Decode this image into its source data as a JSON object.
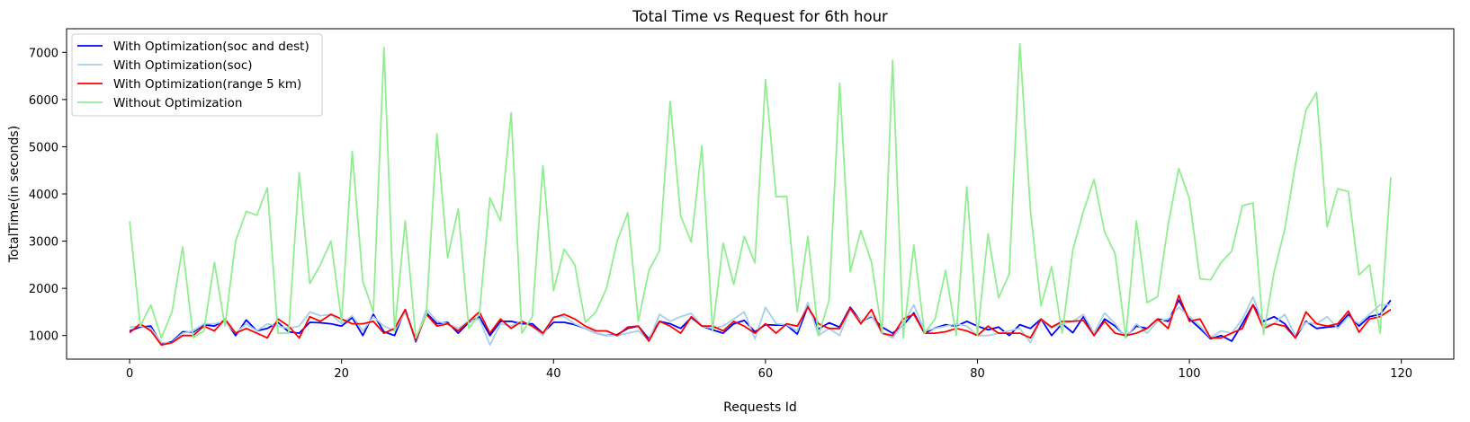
{
  "chart_data": {
    "type": "line",
    "title": "Total Time vs Request for 6th hour",
    "xlabel": "Requests Id",
    "ylabel": "TotalTime(in seconds)",
    "xlim": [
      -5.95,
      124.95
    ],
    "ylim": [
      500,
      7500
    ],
    "xticks": [
      0,
      20,
      40,
      60,
      80,
      100,
      120
    ],
    "yticks": [
      1000,
      2000,
      3000,
      4000,
      5000,
      6000,
      7000
    ],
    "grid": false,
    "legend_position": "top-left",
    "series": [
      {
        "name": "With Optimization(soc and dest)",
        "color": "#0000ff",
        "x": [
          0,
          1,
          2,
          3,
          4,
          5,
          6,
          7,
          8,
          9,
          10,
          11,
          12,
          13,
          14,
          15,
          16,
          17,
          18,
          19,
          20,
          21,
          22,
          23,
          24,
          25,
          26,
          27,
          28,
          29,
          30,
          31,
          32,
          33,
          34,
          35,
          36,
          37,
          38,
          39,
          40,
          41,
          42,
          43,
          44,
          45,
          46,
          47,
          48,
          49,
          50,
          51,
          52,
          53,
          54,
          55,
          56,
          57,
          58,
          59,
          60,
          61,
          62,
          63,
          64,
          65,
          66,
          67,
          68,
          69,
          70,
          71,
          72,
          73,
          74,
          75,
          76,
          77,
          78,
          79,
          80,
          81,
          82,
          83,
          84,
          85,
          86,
          87,
          88,
          89,
          90,
          91,
          92,
          93,
          94,
          95,
          96,
          97,
          98,
          99,
          100,
          101,
          102,
          103,
          104,
          105,
          106,
          107,
          108,
          109,
          110,
          111,
          112,
          113,
          114,
          115,
          116,
          117,
          118,
          119
        ],
        "values": [
          1100,
          1180,
          1200,
          820,
          870,
          1080,
          1070,
          1230,
          1200,
          1330,
          1000,
          1330,
          1100,
          1150,
          1280,
          1080,
          1050,
          1280,
          1270,
          1250,
          1200,
          1380,
          1000,
          1450,
          1080,
          1000,
          1550,
          870,
          1480,
          1250,
          1280,
          1050,
          1280,
          1400,
          1000,
          1300,
          1300,
          1250,
          1250,
          1050,
          1280,
          1280,
          1230,
          1150,
          1050,
          1000,
          1020,
          1150,
          1200,
          930,
          1300,
          1250,
          1150,
          1380,
          1200,
          1120,
          1050,
          1250,
          1320,
          1080,
          1230,
          1220,
          1220,
          1030,
          1620,
          1140,
          1270,
          1180,
          1600,
          1300,
          1400,
          1180,
          1050,
          1220,
          1480,
          1050,
          1160,
          1230,
          1200,
          1300,
          1200,
          1120,
          1180,
          1000,
          1230,
          1150,
          1350,
          1000,
          1250,
          1060,
          1400,
          1000,
          1350,
          1200,
          980,
          1200,
          1150,
          1350,
          1300,
          1750,
          1350,
          1150,
          930,
          1000,
          880,
          1250,
          1650,
          1300,
          1400,
          1250,
          950,
          1300,
          1150,
          1180,
          1200,
          1450,
          1200,
          1400,
          1450,
          1750
        ]
      },
      {
        "name": "With Optimization(soc)",
        "color": "#a6cfe8",
        "x": [
          0,
          1,
          2,
          3,
          4,
          5,
          6,
          7,
          8,
          9,
          10,
          11,
          12,
          13,
          14,
          15,
          16,
          17,
          18,
          19,
          20,
          21,
          22,
          23,
          24,
          25,
          26,
          27,
          28,
          29,
          30,
          31,
          32,
          33,
          34,
          35,
          36,
          37,
          38,
          39,
          40,
          41,
          42,
          43,
          44,
          45,
          46,
          47,
          48,
          49,
          50,
          51,
          52,
          53,
          54,
          55,
          56,
          57,
          58,
          59,
          60,
          61,
          62,
          63,
          64,
          65,
          66,
          67,
          68,
          69,
          70,
          71,
          72,
          73,
          74,
          75,
          76,
          77,
          78,
          79,
          80,
          81,
          82,
          83,
          84,
          85,
          86,
          87,
          88,
          89,
          90,
          91,
          92,
          93,
          94,
          95,
          96,
          97,
          98,
          99,
          100,
          101,
          102,
          103,
          104,
          105,
          106,
          107,
          108,
          109,
          110,
          111,
          112,
          113,
          114,
          115,
          116,
          117,
          118,
          119
        ],
        "values": [
          1180,
          1200,
          1150,
          850,
          850,
          1050,
          1100,
          1250,
          1250,
          1300,
          1050,
          1250,
          1100,
          1250,
          1200,
          1150,
          1200,
          1500,
          1420,
          1450,
          1250,
          1420,
          1100,
          1400,
          1200,
          1100,
          1500,
          900,
          1560,
          1300,
          1250,
          1150,
          1300,
          1350,
          800,
          1250,
          1200,
          1300,
          1200,
          1000,
          1400,
          1400,
          1250,
          1150,
          1050,
          1000,
          1000,
          1050,
          1100,
          900,
          1450,
          1300,
          1400,
          1470,
          1200,
          1150,
          1200,
          1350,
          1500,
          930,
          1600,
          1250,
          1230,
          1100,
          1700,
          1000,
          1150,
          1000,
          1550,
          1300,
          1420,
          1050,
          950,
          1250,
          1650,
          1100,
          1150,
          1200,
          1250,
          1200,
          1000,
          1000,
          1050,
          1100,
          1150,
          850,
          1350,
          1150,
          1250,
          1300,
          1450,
          1050,
          1480,
          1250,
          950,
          1250,
          1050,
          1300,
          1350,
          1600,
          1400,
          1200,
          950,
          1100,
          1050,
          1350,
          1820,
          1220,
          1250,
          1450,
          1000,
          1280,
          1250,
          1400,
          1150,
          1400,
          1250,
          1450,
          1650,
          1650
        ]
      },
      {
        "name": "With Optimization(range 5 km)",
        "color": "#ff0000",
        "x": [
          0,
          1,
          2,
          3,
          4,
          5,
          6,
          7,
          8,
          9,
          10,
          11,
          12,
          13,
          14,
          15,
          16,
          17,
          18,
          19,
          20,
          21,
          22,
          23,
          24,
          25,
          26,
          27,
          28,
          29,
          30,
          31,
          32,
          33,
          34,
          35,
          36,
          37,
          38,
          39,
          40,
          41,
          42,
          43,
          44,
          45,
          46,
          47,
          48,
          49,
          50,
          51,
          52,
          53,
          54,
          55,
          56,
          57,
          58,
          59,
          60,
          61,
          62,
          63,
          64,
          65,
          66,
          67,
          68,
          69,
          70,
          71,
          72,
          73,
          74,
          75,
          76,
          77,
          78,
          79,
          80,
          81,
          82,
          83,
          84,
          85,
          86,
          87,
          88,
          89,
          90,
          91,
          92,
          93,
          94,
          95,
          96,
          97,
          98,
          99,
          100,
          101,
          102,
          103,
          104,
          105,
          106,
          107,
          108,
          109,
          110,
          111,
          112,
          113,
          114,
          115,
          116,
          117,
          118,
          119
        ],
        "values": [
          1060,
          1250,
          1100,
          800,
          850,
          1000,
          1000,
          1200,
          1100,
          1350,
          1050,
          1150,
          1050,
          950,
          1350,
          1200,
          950,
          1400,
          1300,
          1450,
          1350,
          1250,
          1250,
          1300,
          1050,
          1150,
          1550,
          900,
          1450,
          1200,
          1250,
          1100,
          1300,
          1500,
          1050,
          1350,
          1150,
          1300,
          1200,
          1050,
          1380,
          1450,
          1350,
          1200,
          1100,
          1100,
          1000,
          1180,
          1200,
          880,
          1300,
          1200,
          1050,
          1400,
          1200,
          1200,
          1100,
          1300,
          1200,
          1050,
          1250,
          1050,
          1250,
          1200,
          1600,
          1250,
          1150,
          1150,
          1580,
          1250,
          1550,
          1050,
          1000,
          1350,
          1450,
          1050,
          1050,
          1080,
          1150,
          1100,
          1000,
          1200,
          1050,
          1050,
          1050,
          950,
          1350,
          1180,
          1300,
          1300,
          1320,
          1000,
          1300,
          1050,
          1000,
          1050,
          1150,
          1350,
          1150,
          1850,
          1300,
          1350,
          950,
          950,
          1050,
          1150,
          1650,
          1150,
          1250,
          1200,
          950,
          1500,
          1250,
          1200,
          1250,
          1520,
          1070,
          1350,
          1400,
          1550
        ]
      },
      {
        "name": "Without Optimization",
        "color": "#90ee90",
        "x": [
          0,
          1,
          2,
          3,
          4,
          5,
          6,
          7,
          8,
          9,
          10,
          11,
          12,
          13,
          14,
          15,
          16,
          17,
          18,
          19,
          20,
          21,
          22,
          23,
          24,
          25,
          26,
          27,
          28,
          29,
          30,
          31,
          32,
          33,
          34,
          35,
          36,
          37,
          38,
          39,
          40,
          41,
          42,
          43,
          44,
          45,
          46,
          47,
          48,
          49,
          50,
          51,
          52,
          53,
          54,
          55,
          56,
          57,
          58,
          59,
          60,
          61,
          62,
          63,
          64,
          65,
          66,
          67,
          68,
          69,
          70,
          71,
          72,
          73,
          74,
          75,
          76,
          77,
          78,
          79,
          80,
          81,
          82,
          83,
          84,
          85,
          86,
          87,
          88,
          89,
          90,
          91,
          92,
          93,
          94,
          95,
          96,
          97,
          98,
          99,
          100,
          101,
          102,
          103,
          104,
          105,
          106,
          107,
          108,
          109,
          110,
          111,
          112,
          113,
          114,
          115,
          116,
          117,
          118,
          119
        ],
        "values": [
          3420,
          1200,
          1650,
          950,
          1500,
          2880,
          950,
          1100,
          2550,
          1200,
          3000,
          3630,
          3550,
          4130,
          1050,
          1050,
          4450,
          2100,
          2500,
          3000,
          1300,
          4900,
          2150,
          1500,
          7100,
          1100,
          3430,
          950,
          1450,
          5270,
          2650,
          3680,
          1150,
          1450,
          3920,
          3430,
          5720,
          1050,
          1400,
          4600,
          1950,
          2830,
          2500,
          1280,
          1500,
          2000,
          3000,
          3600,
          1300,
          2380,
          2800,
          5960,
          3530,
          2980,
          5020,
          1100,
          2960,
          2080,
          3100,
          2540,
          6420,
          3940,
          3950,
          1500,
          3100,
          1000,
          1750,
          6350,
          2350,
          3230,
          2560,
          1050,
          6830,
          950,
          2920,
          1050,
          1350,
          2380,
          1000,
          4150,
          1000,
          3160,
          1800,
          2300,
          7180,
          3650,
          1630,
          2460,
          1050,
          2810,
          3630,
          4310,
          3200,
          2730,
          950,
          3430,
          1700,
          1820,
          3350,
          4540,
          3900,
          2200,
          2180,
          2550,
          2790,
          3750,
          3810,
          1020,
          2350,
          3250,
          4620,
          5780,
          6150,
          3300,
          4110,
          4050,
          2280,
          2500,
          1050,
          4350
        ]
      }
    ]
  }
}
